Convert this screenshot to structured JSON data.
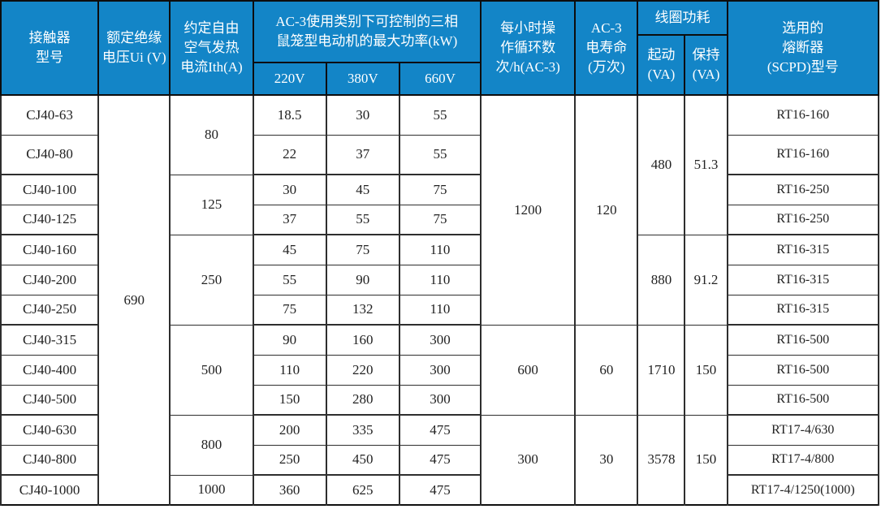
{
  "table": {
    "header": {
      "model": "接触器\n型号",
      "ui": "额定绝缘\n电压Ui (V)",
      "ith": "约定自由\n空气发热\n电流Ith(A)",
      "power_group": "AC-3使用类别下可控制的三相\n鼠笼型电动机的最大功率(kW)",
      "p220": "220V",
      "p380": "380V",
      "p660": "660V",
      "cycles": "每小时操\n作循环数\n次/h(AC-3)",
      "life": "AC-3\n电寿命\n(万次)",
      "coil_group": "线圈功耗",
      "coil_start": "起动\n(VA)",
      "coil_hold": "保持\n(VA)",
      "fuse": "选用的\n熔断器\n(SCPD)型号"
    },
    "colors": {
      "header_bg": "#1385c7",
      "header_text": "#ffffff",
      "border": "#101010",
      "body_text": "#222222"
    },
    "rows": [
      {
        "tall": true,
        "group_end": false,
        "cells": [
          {
            "c": "model",
            "t": "CJ40-63"
          },
          {
            "c": "ui",
            "t": "690",
            "rs": 13
          },
          {
            "c": "ith",
            "t": "80",
            "rs": 2
          },
          {
            "c": "p220",
            "t": "18.5"
          },
          {
            "c": "p380",
            "t": "30"
          },
          {
            "c": "p660",
            "t": "55"
          },
          {
            "c": "cycles",
            "t": "1200",
            "rs": 7
          },
          {
            "c": "life",
            "t": "120",
            "rs": 7
          },
          {
            "c": "start",
            "t": "480",
            "rs": 4
          },
          {
            "c": "hold",
            "t": "51.3",
            "rs": 4
          },
          {
            "c": "fuse",
            "t": "RT16-160"
          }
        ]
      },
      {
        "tall": true,
        "group_end": true,
        "cells": [
          {
            "c": "model",
            "t": "CJ40-80"
          },
          {
            "c": "p220",
            "t": "22"
          },
          {
            "c": "p380",
            "t": "37"
          },
          {
            "c": "p660",
            "t": "55"
          },
          {
            "c": "fuse",
            "t": "RT16-160"
          }
        ]
      },
      {
        "tall": false,
        "group_end": false,
        "cells": [
          {
            "c": "model",
            "t": "CJ40-100"
          },
          {
            "c": "ith",
            "t": "125",
            "rs": 2
          },
          {
            "c": "p220",
            "t": "30"
          },
          {
            "c": "p380",
            "t": "45"
          },
          {
            "c": "p660",
            "t": "75"
          },
          {
            "c": "fuse",
            "t": "RT16-250"
          }
        ]
      },
      {
        "tall": false,
        "group_end": true,
        "cells": [
          {
            "c": "model",
            "t": "CJ40-125"
          },
          {
            "c": "p220",
            "t": "37"
          },
          {
            "c": "p380",
            "t": "55"
          },
          {
            "c": "p660",
            "t": "75"
          },
          {
            "c": "fuse",
            "t": "RT16-250"
          }
        ]
      },
      {
        "tall": false,
        "group_end": false,
        "cells": [
          {
            "c": "model",
            "t": "CJ40-160"
          },
          {
            "c": "ith",
            "t": "250",
            "rs": 3
          },
          {
            "c": "p220",
            "t": "45"
          },
          {
            "c": "p380",
            "t": "75"
          },
          {
            "c": "p660",
            "t": "110"
          },
          {
            "c": "start",
            "t": "880",
            "rs": 3
          },
          {
            "c": "hold",
            "t": "91.2",
            "rs": 3
          },
          {
            "c": "fuse",
            "t": "RT16-315"
          }
        ]
      },
      {
        "tall": false,
        "group_end": false,
        "cells": [
          {
            "c": "model",
            "t": "CJ40-200"
          },
          {
            "c": "p220",
            "t": "55"
          },
          {
            "c": "p380",
            "t": "90"
          },
          {
            "c": "p660",
            "t": "110"
          },
          {
            "c": "fuse",
            "t": "RT16-315"
          }
        ]
      },
      {
        "tall": false,
        "group_end": true,
        "cells": [
          {
            "c": "model",
            "t": "CJ40-250"
          },
          {
            "c": "p220",
            "t": "75"
          },
          {
            "c": "p380",
            "t": "132"
          },
          {
            "c": "p660",
            "t": "110"
          },
          {
            "c": "fuse",
            "t": "RT16-315"
          }
        ]
      },
      {
        "tall": false,
        "group_end": false,
        "cells": [
          {
            "c": "model",
            "t": "CJ40-315"
          },
          {
            "c": "ith",
            "t": "500",
            "rs": 3
          },
          {
            "c": "p220",
            "t": "90"
          },
          {
            "c": "p380",
            "t": "160"
          },
          {
            "c": "p660",
            "t": "300"
          },
          {
            "c": "cycles",
            "t": "600",
            "rs": 3
          },
          {
            "c": "life",
            "t": "60",
            "rs": 3
          },
          {
            "c": "start",
            "t": "1710",
            "rs": 3
          },
          {
            "c": "hold",
            "t": "150",
            "rs": 3
          },
          {
            "c": "fuse",
            "t": "RT16-500"
          }
        ]
      },
      {
        "tall": false,
        "group_end": false,
        "cells": [
          {
            "c": "model",
            "t": "CJ40-400"
          },
          {
            "c": "p220",
            "t": "110"
          },
          {
            "c": "p380",
            "t": "220"
          },
          {
            "c": "p660",
            "t": "300"
          },
          {
            "c": "fuse",
            "t": "RT16-500"
          }
        ]
      },
      {
        "tall": false,
        "group_end": true,
        "cells": [
          {
            "c": "model",
            "t": "CJ40-500"
          },
          {
            "c": "p220",
            "t": "150"
          },
          {
            "c": "p380",
            "t": "280"
          },
          {
            "c": "p660",
            "t": "300"
          },
          {
            "c": "fuse",
            "t": "RT16-500"
          }
        ]
      },
      {
        "tall": false,
        "group_end": false,
        "cells": [
          {
            "c": "model",
            "t": "CJ40-630"
          },
          {
            "c": "ith",
            "t": "800",
            "rs": 2
          },
          {
            "c": "p220",
            "t": "200"
          },
          {
            "c": "p380",
            "t": "335"
          },
          {
            "c": "p660",
            "t": "475"
          },
          {
            "c": "cycles",
            "t": "300",
            "rs": 3
          },
          {
            "c": "life",
            "t": "30",
            "rs": 3
          },
          {
            "c": "start",
            "t": "3578",
            "rs": 3
          },
          {
            "c": "hold",
            "t": "150",
            "rs": 3
          },
          {
            "c": "fuse",
            "t": "RT17-4/630"
          }
        ]
      },
      {
        "tall": false,
        "group_end": true,
        "cells": [
          {
            "c": "model",
            "t": "CJ40-800"
          },
          {
            "c": "p220",
            "t": "250"
          },
          {
            "c": "p380",
            "t": "450"
          },
          {
            "c": "p660",
            "t": "475"
          },
          {
            "c": "fuse",
            "t": "RT17-4/800"
          }
        ]
      },
      {
        "tall": false,
        "group_end": false,
        "cells": [
          {
            "c": "model",
            "t": "CJ40-1000"
          },
          {
            "c": "ith",
            "t": "1000"
          },
          {
            "c": "p220",
            "t": "360"
          },
          {
            "c": "p380",
            "t": "625"
          },
          {
            "c": "p660",
            "t": "475"
          },
          {
            "c": "fuse",
            "t": "RT17-4/1250(1000)"
          }
        ]
      }
    ]
  }
}
